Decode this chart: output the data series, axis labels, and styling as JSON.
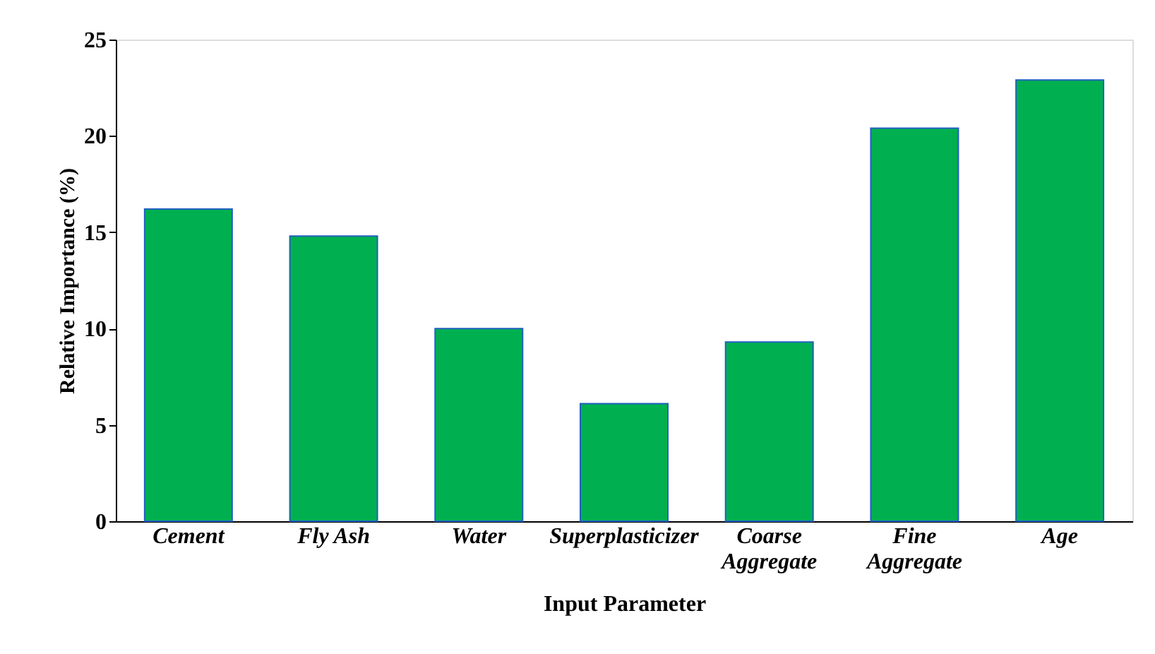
{
  "chart_data": {
    "type": "bar",
    "xlabel": "Input Parameter",
    "ylabel": "Relative Importance  (%)",
    "categories": [
      "Cement",
      "Fly Ash",
      "Water",
      "Superplasticizer",
      "Coarse Aggregate",
      "Fine Aggregate",
      "Age"
    ],
    "values": [
      16.2,
      14.8,
      10.0,
      6.1,
      9.3,
      20.4,
      22.9
    ],
    "color": "#00b050",
    "ylim": [
      0,
      25
    ],
    "yticks": [
      0,
      5,
      10,
      15,
      20,
      25
    ],
    "grid": false
  }
}
